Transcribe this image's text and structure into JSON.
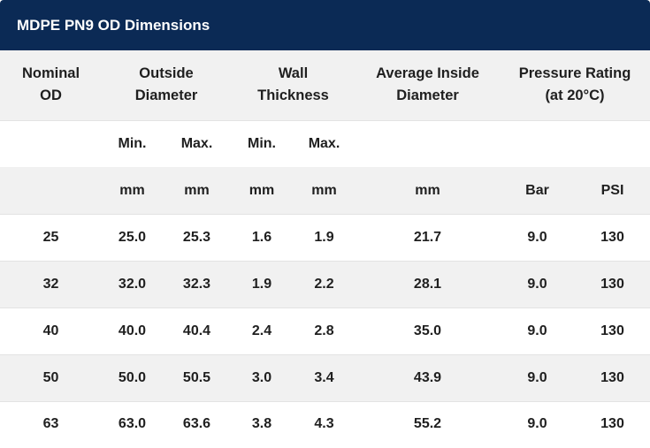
{
  "title": "MDPE PN9 OD Dimensions",
  "headers": {
    "nominal_od": [
      "Nominal",
      "OD"
    ],
    "outside_diameter": [
      "Outside",
      "Diameter"
    ],
    "wall_thickness": [
      "Wall",
      "Thickness"
    ],
    "average_inside_diameter": [
      "Average Inside",
      "Diameter"
    ],
    "pressure_rating": [
      "Pressure Rating",
      "(at 20°C)"
    ]
  },
  "subheaders": {
    "od_min": "Min.",
    "od_max": "Max.",
    "wall_min": "Min.",
    "wall_max": "Max."
  },
  "units": {
    "od_min": "mm",
    "od_max": "mm",
    "wall_min": "mm",
    "wall_max": "mm",
    "avg_id": "mm",
    "bar": "Bar",
    "psi": "PSI"
  },
  "rows": [
    {
      "nominal": "25",
      "od_min": "25.0",
      "od_max": "25.3",
      "wall_min": "1.6",
      "wall_max": "1.9",
      "avg_id": "21.7",
      "bar": "9.0",
      "psi": "130"
    },
    {
      "nominal": "32",
      "od_min": "32.0",
      "od_max": "32.3",
      "wall_min": "1.9",
      "wall_max": "2.2",
      "avg_id": "28.1",
      "bar": "9.0",
      "psi": "130"
    },
    {
      "nominal": "40",
      "od_min": "40.0",
      "od_max": "40.4",
      "wall_min": "2.4",
      "wall_max": "2.8",
      "avg_id": "35.0",
      "bar": "9.0",
      "psi": "130"
    },
    {
      "nominal": "50",
      "od_min": "50.0",
      "od_max": "50.5",
      "wall_min": "3.0",
      "wall_max": "3.4",
      "avg_id": "43.9",
      "bar": "9.0",
      "psi": "130"
    },
    {
      "nominal": "63",
      "od_min": "63.0",
      "od_max": "63.6",
      "wall_min": "3.8",
      "wall_max": "4.3",
      "avg_id": "55.2",
      "bar": "9.0",
      "psi": "130"
    }
  ]
}
